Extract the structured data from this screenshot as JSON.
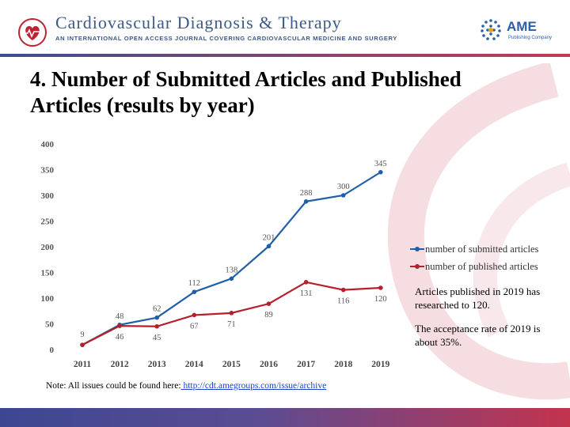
{
  "header": {
    "journal_title": "Cardiovascular Diagnosis & Therapy",
    "journal_subtitle": "AN INTERNATIONAL OPEN ACCESS JOURNAL COVERING CARDIOVASCULAR MEDICINE AND SURGERY",
    "publisher_name": "AME",
    "publisher_tagline": "Publishing Company"
  },
  "slide_title": "4. Number of Submitted Articles and Published Articles (results by year)",
  "notes": [
    "Articles published in 2019 has researched to 120.",
    "The acceptance rate of 2019 is about 35%."
  ],
  "footnote": {
    "text": "Note: All issues could be found here:",
    "link": " http://cdt.amegroups.com/issue/archive"
  },
  "chart_data": {
    "type": "line",
    "title": "",
    "xlabel": "",
    "ylabel": "",
    "categories": [
      "2011",
      "2012",
      "2013",
      "2014",
      "2015",
      "2016",
      "2017",
      "2018",
      "2019"
    ],
    "ylim": [
      0,
      400
    ],
    "yticks": [
      0,
      50,
      100,
      150,
      200,
      250,
      300,
      350,
      400
    ],
    "grid": false,
    "legend_position": "right",
    "series": [
      {
        "name": "number of submitted articles",
        "color": "#1f5fa8",
        "values": [
          9,
          48,
          62,
          112,
          138,
          201,
          288,
          300,
          345
        ]
      },
      {
        "name": "number of published articles",
        "color": "#b5202b",
        "values": [
          9,
          46,
          45,
          67,
          71,
          89,
          131,
          116,
          120
        ]
      }
    ]
  },
  "colors": {
    "footer_left": "#3c4791",
    "footer_right": "#c3334d",
    "heading_blue": "#3c5a88"
  },
  "icons": {
    "journal_logo": "heart-logo-icon",
    "publisher_logo": "ame-globe-logo-icon"
  }
}
